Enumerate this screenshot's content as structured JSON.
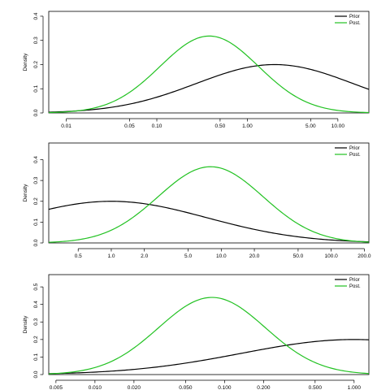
{
  "chart_data": [
    {
      "type": "line",
      "ylabel": "Density",
      "xscale": "log",
      "xlim": [
        0.0064,
        22
      ],
      "ylim": [
        0,
        0.42
      ],
      "xticks": [
        0.01,
        0.05,
        0.1,
        0.5,
        1.0,
        5.0,
        10.0
      ],
      "xtick_labels": [
        "0.01",
        "0.05",
        "0.10",
        "0.50",
        "1.00",
        "5.00",
        "10.00"
      ],
      "yticks": [
        0.0,
        0.1,
        0.2,
        0.3,
        0.4
      ],
      "ytick_labels": [
        "0.0",
        "0.1",
        "0.2",
        "0.3",
        "0.4"
      ],
      "legend": "top-right",
      "series": [
        {
          "name": "Prior",
          "color": "#000000",
          "mode": 2.0,
          "log_sd": 2.0,
          "peak": 0.2
        },
        {
          "name": "Post.",
          "color": "#22c222",
          "mode": 0.38,
          "log_sd": 1.25,
          "peak": 0.318
        }
      ]
    },
    {
      "type": "line",
      "ylabel": "Density",
      "xscale": "log",
      "xlim": [
        0.27,
        220
      ],
      "ylim": [
        0,
        0.48
      ],
      "xticks": [
        0.5,
        1.0,
        2.0,
        5.0,
        10.0,
        20.0,
        50.0,
        100.0,
        200.0
      ],
      "xtick_labels": [
        "0.5",
        "1.0",
        "2.0",
        "5.0",
        "10.0",
        "20.0",
        "50.0",
        "100.0",
        "200.0"
      ],
      "yticks": [
        0.0,
        0.1,
        0.2,
        0.3,
        0.4
      ],
      "ytick_labels": [
        "0.0",
        "0.1",
        "0.2",
        "0.3",
        "0.4"
      ],
      "legend": "top-right",
      "series": [
        {
          "name": "Prior",
          "color": "#000000",
          "mode": 1.0,
          "log_sd": 2.0,
          "peak": 0.2
        },
        {
          "name": "Post.",
          "color": "#22c222",
          "mode": 8.0,
          "log_sd": 1.1,
          "peak": 0.366
        }
      ]
    },
    {
      "type": "line",
      "ylabel": "Density",
      "xscale": "log",
      "xlim": [
        0.0044,
        1.3
      ],
      "ylim": [
        0,
        0.57
      ],
      "xticks": [
        0.005,
        0.01,
        0.02,
        0.05,
        0.1,
        0.2,
        0.5,
        1.0
      ],
      "xtick_labels": [
        "0.005",
        "0.010",
        "0.020",
        "0.050",
        "0.100",
        "0.200",
        "0.500",
        "1.000"
      ],
      "yticks": [
        0.0,
        0.1,
        0.2,
        0.3,
        0.4,
        0.5
      ],
      "ytick_labels": [
        "0.0",
        "0.1",
        "0.2",
        "0.3",
        "0.4",
        "0.5"
      ],
      "legend": "top-right",
      "series": [
        {
          "name": "Prior",
          "color": "#000000",
          "mode": 1.0,
          "log_sd": 2.0,
          "peak": 0.2
        },
        {
          "name": "Post.",
          "color": "#22c222",
          "mode": 0.08,
          "log_sd": 0.95,
          "peak": 0.44
        }
      ]
    }
  ]
}
